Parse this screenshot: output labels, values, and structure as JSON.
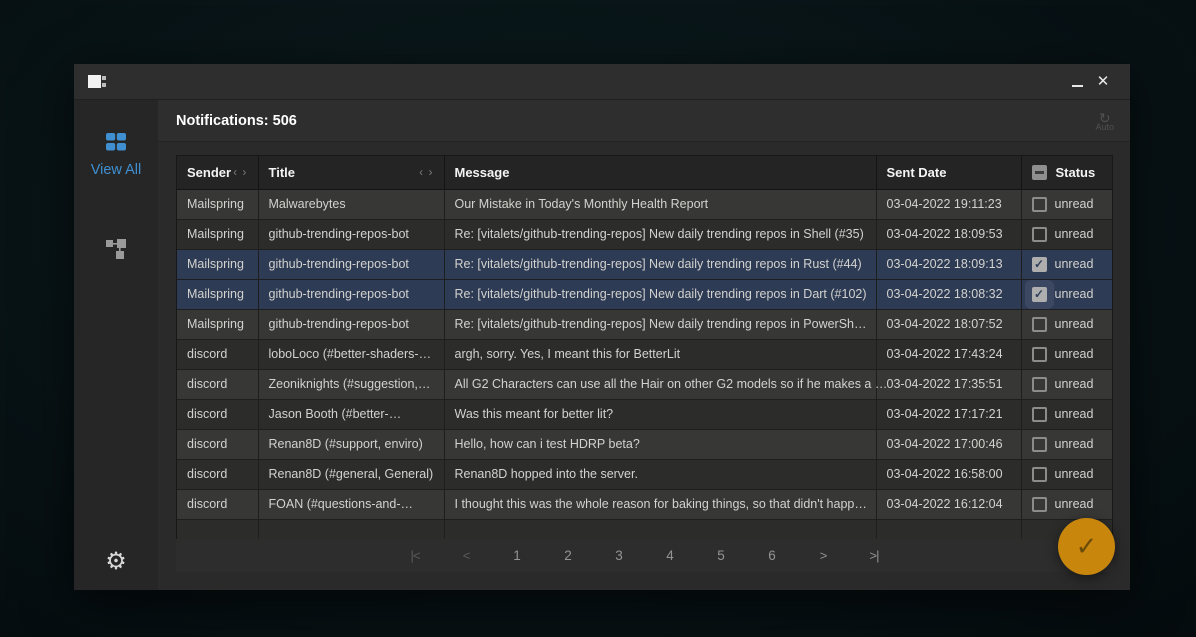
{
  "window": {
    "controls": {
      "minimize": "minimize",
      "close": "✕"
    }
  },
  "sidebar": {
    "view_all_label": "View All"
  },
  "header": {
    "title": "Notifications: 506",
    "auto_icon": "↻",
    "auto_label": "Auto"
  },
  "table": {
    "columns": {
      "sender": "Sender",
      "title": "Title",
      "message": "Message",
      "sent_date": "Sent Date",
      "status": "Status"
    },
    "sort_pair": "‹ ›",
    "rows": [
      {
        "sender": "Mailspring",
        "title": "Malwarebytes",
        "message": "Our Mistake in Today's Monthly Health Report",
        "sent_date": "03-04-2022 19:11:23",
        "status": "unread",
        "checked": false,
        "selected": false
      },
      {
        "sender": "Mailspring",
        "title": "github-trending-repos-bot",
        "message": "Re: [vitalets/github-trending-repos] New daily trending repos in Shell (#35)",
        "sent_date": "03-04-2022 18:09:53",
        "status": "unread",
        "checked": false,
        "selected": false
      },
      {
        "sender": "Mailspring",
        "title": "github-trending-repos-bot",
        "message": "Re: [vitalets/github-trending-repos] New daily trending repos in Rust (#44)",
        "sent_date": "03-04-2022 18:09:13",
        "status": "unread",
        "checked": true,
        "selected": true
      },
      {
        "sender": "Mailspring",
        "title": "github-trending-repos-bot",
        "message": "Re: [vitalets/github-trending-repos] New daily trending repos in Dart (#102)",
        "sent_date": "03-04-2022 18:08:32",
        "status": "unread",
        "checked": true,
        "selected": true,
        "glow": true
      },
      {
        "sender": "Mailspring",
        "title": "github-trending-repos-bot",
        "message": "Re: [vitalets/github-trending-repos] New daily trending repos in PowerSh…",
        "sent_date": "03-04-2022 18:07:52",
        "status": "unread",
        "checked": false,
        "selected": false
      },
      {
        "sender": "discord",
        "title": "loboLoco (#better-shaders-…",
        "message": "argh, sorry. Yes, I meant this for BetterLit",
        "sent_date": "03-04-2022 17:43:24",
        "status": "unread",
        "checked": false,
        "selected": false
      },
      {
        "sender": "discord",
        "title": "Zeoniknights (#suggestion,…",
        "message": "All G2 Characters can use all the Hair on other G2 models so if he makes a …",
        "sent_date": "03-04-2022 17:35:51",
        "status": "unread",
        "checked": false,
        "selected": false
      },
      {
        "sender": "discord",
        "title": "Jason Booth (#better-…",
        "message": "Was this meant for better lit?",
        "sent_date": "03-04-2022 17:17:21",
        "status": "unread",
        "checked": false,
        "selected": false
      },
      {
        "sender": "discord",
        "title": "Renan8D (#support, enviro)",
        "message": "Hello, how can i test HDRP beta?",
        "sent_date": "03-04-2022 17:00:46",
        "status": "unread",
        "checked": false,
        "selected": false
      },
      {
        "sender": "discord",
        "title": "Renan8D (#general, General)",
        "message": "Renan8D hopped into the server.",
        "sent_date": "03-04-2022 16:58:00",
        "status": "unread",
        "checked": false,
        "selected": false
      },
      {
        "sender": "discord",
        "title": "FOAN (#questions-and-…",
        "message": "I thought this was the whole reason for baking things, so that didn't happ…",
        "sent_date": "03-04-2022 16:12:04",
        "status": "unread",
        "checked": false,
        "selected": false
      },
      {
        "sender": "",
        "title": "",
        "message": "",
        "sent_date": "",
        "status": "",
        "checked": false,
        "selected": false,
        "clipped": true
      }
    ]
  },
  "pagination": {
    "items": [
      {
        "label": "|<",
        "name": "first-page-button",
        "disabled": true,
        "nav": true
      },
      {
        "label": "<",
        "name": "prev-page-button",
        "disabled": true,
        "nav": true
      },
      {
        "label": "1",
        "name": "page-1-button",
        "disabled": false,
        "nav": false
      },
      {
        "label": "2",
        "name": "page-2-button",
        "disabled": false,
        "nav": false
      },
      {
        "label": "3",
        "name": "page-3-button",
        "disabled": false,
        "nav": false
      },
      {
        "label": "4",
        "name": "page-4-button",
        "disabled": false,
        "nav": false
      },
      {
        "label": "5",
        "name": "page-5-button",
        "disabled": false,
        "nav": false
      },
      {
        "label": "6",
        "name": "page-6-button",
        "disabled": false,
        "nav": false
      },
      {
        "label": ">",
        "name": "next-page-button",
        "disabled": false,
        "nav": true
      },
      {
        "label": ">|",
        "name": "last-page-button",
        "disabled": false,
        "nav": true
      }
    ]
  },
  "fab": {
    "icon": "✓"
  },
  "colors": {
    "accent_blue": "#3f8fd1",
    "selected_row": "#2e3b55",
    "fab_orange": "#c8860d",
    "window_bg": "#2e2e2e"
  }
}
